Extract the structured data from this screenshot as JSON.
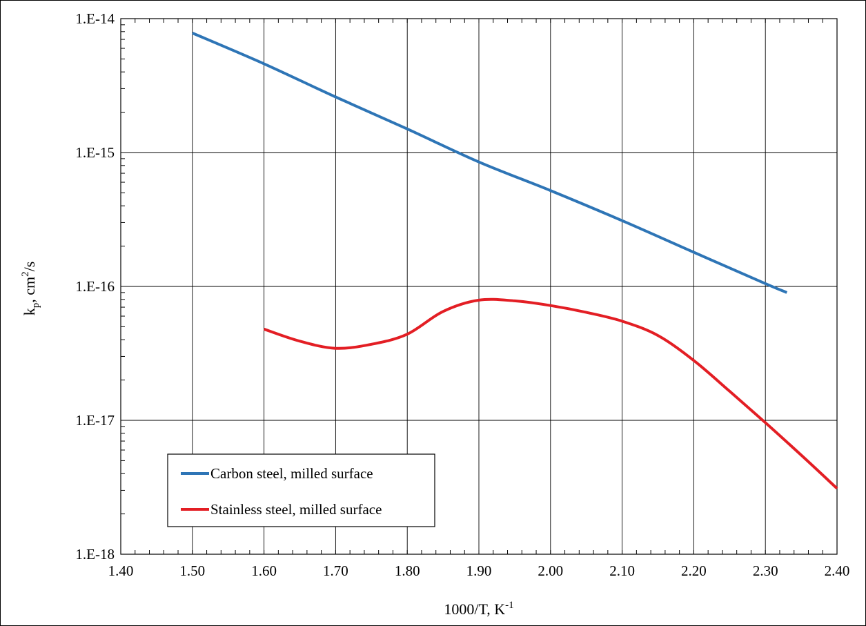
{
  "chart_data": {
    "type": "line",
    "xlabel": "1000/T, K",
    "xlabel_sup": "-1",
    "ylabel": "k",
    "ylabel_sub": "p",
    "ylabel_tail": ", cm",
    "ylabel_sup": "2",
    "ylabel_end": "/s",
    "xlim": [
      1.4,
      2.4
    ],
    "ylim": [
      1e-18,
      1e-14
    ],
    "yscale": "log",
    "grid": true,
    "legend_position": "bottom-left",
    "x_ticks": [
      1.4,
      1.5,
      1.6,
      1.7,
      1.8,
      1.9,
      2.0,
      2.1,
      2.2,
      2.3,
      2.4
    ],
    "x_tick_labels": [
      "1.40",
      "1.50",
      "1.60",
      "1.70",
      "1.80",
      "1.90",
      "2.00",
      "2.10",
      "2.20",
      "2.30",
      "2.40"
    ],
    "y_ticks": [
      1e-14,
      1e-15,
      1e-16,
      1e-17,
      1e-18
    ],
    "y_tick_labels": [
      "1.E-14",
      "1.E-15",
      "1.E-16",
      "1.E-17",
      "1.E-18"
    ],
    "series": [
      {
        "name": "Carbon steel, milled surface",
        "color": "#2E75B6",
        "x": [
          1.5,
          1.6,
          1.7,
          1.8,
          1.9,
          2.0,
          2.1,
          2.2,
          2.3,
          2.33
        ],
        "y": [
          7.8e-15,
          4.6e-15,
          2.6e-15,
          1.5e-15,
          8.5e-16,
          5.2e-16,
          3.1e-16,
          1.8e-16,
          1.05e-16,
          9e-17
        ]
      },
      {
        "name": "Stainless steel, milled surface",
        "color": "#E31E24",
        "x": [
          1.6,
          1.65,
          1.7,
          1.75,
          1.8,
          1.85,
          1.9,
          1.95,
          2.0,
          2.05,
          2.1,
          2.15,
          2.2,
          2.25,
          2.3,
          2.35,
          2.4
        ],
        "y": [
          4.8e-17,
          3.9e-17,
          3.45e-17,
          3.7e-17,
          4.4e-17,
          6.5e-17,
          7.9e-17,
          7.8e-17,
          7.2e-17,
          6.4e-17,
          5.5e-17,
          4.3e-17,
          2.8e-17,
          1.65e-17,
          9.6e-18,
          5.5e-18,
          3.1e-18
        ]
      }
    ]
  }
}
